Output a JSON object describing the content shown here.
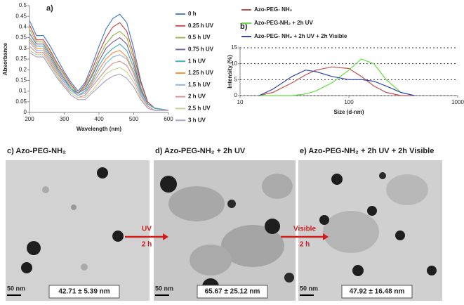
{
  "chart_data": [
    {
      "type": "line",
      "panel": "a)",
      "y_label": "Absorbance",
      "x_label": "Wavelength (nm)",
      "x": [
        200,
        220,
        240,
        260,
        280,
        300,
        320,
        340,
        360,
        380,
        400,
        420,
        440,
        460,
        480,
        500,
        520,
        540,
        560,
        600
      ],
      "xlim": [
        200,
        600
      ],
      "xticks": [
        200,
        300,
        400,
        500,
        600
      ],
      "ylim": [
        0,
        0.5
      ],
      "yticks": [
        0,
        0.05,
        0.1,
        0.15,
        0.2,
        0.25,
        0.3,
        0.35,
        0.4,
        0.45,
        0.5
      ],
      "grid": false,
      "legend": "right",
      "series": [
        {
          "name": "0 h",
          "color": "#4f81bd",
          "values": [
            0.43,
            0.36,
            0.36,
            0.31,
            0.25,
            0.19,
            0.14,
            0.1,
            0.14,
            0.22,
            0.31,
            0.39,
            0.44,
            0.46,
            0.42,
            0.3,
            0.15,
            0.05,
            0.02,
            0.01
          ]
        },
        {
          "name": "0.25 h UV",
          "color": "#c0504d",
          "values": [
            0.41,
            0.34,
            0.34,
            0.29,
            0.23,
            0.18,
            0.13,
            0.09,
            0.13,
            0.2,
            0.28,
            0.35,
            0.4,
            0.42,
            0.38,
            0.27,
            0.14,
            0.05,
            0.02,
            0.01
          ]
        },
        {
          "name": "0.5 h UV",
          "color": "#9bbb59",
          "values": [
            0.39,
            0.33,
            0.33,
            0.28,
            0.22,
            0.17,
            0.12,
            0.09,
            0.12,
            0.18,
            0.26,
            0.32,
            0.36,
            0.38,
            0.35,
            0.25,
            0.12,
            0.04,
            0.02,
            0.01
          ]
        },
        {
          "name": "0.75 h UV",
          "color": "#8064a2",
          "values": [
            0.37,
            0.32,
            0.32,
            0.27,
            0.21,
            0.16,
            0.11,
            0.09,
            0.11,
            0.17,
            0.24,
            0.3,
            0.33,
            0.35,
            0.32,
            0.23,
            0.11,
            0.04,
            0.02,
            0.01
          ]
        },
        {
          "name": "1 h UV",
          "color": "#4bacc6",
          "values": [
            0.35,
            0.31,
            0.31,
            0.26,
            0.2,
            0.15,
            0.11,
            0.08,
            0.1,
            0.15,
            0.22,
            0.27,
            0.3,
            0.32,
            0.29,
            0.21,
            0.1,
            0.04,
            0.02,
            0.01
          ]
        },
        {
          "name": "1.25 h UV",
          "color": "#f79646",
          "values": [
            0.34,
            0.3,
            0.3,
            0.25,
            0.19,
            0.14,
            0.1,
            0.08,
            0.09,
            0.14,
            0.2,
            0.25,
            0.28,
            0.29,
            0.26,
            0.19,
            0.09,
            0.03,
            0.01,
            0.01
          ]
        },
        {
          "name": "1.5 h UV",
          "color": "#95b3d7",
          "values": [
            0.33,
            0.29,
            0.29,
            0.24,
            0.18,
            0.14,
            0.1,
            0.08,
            0.09,
            0.13,
            0.18,
            0.23,
            0.26,
            0.27,
            0.25,
            0.18,
            0.09,
            0.03,
            0.01,
            0.01
          ]
        },
        {
          "name": "2 h UV",
          "color": "#d99694",
          "values": [
            0.31,
            0.28,
            0.28,
            0.23,
            0.17,
            0.13,
            0.09,
            0.07,
            0.08,
            0.12,
            0.16,
            0.2,
            0.23,
            0.24,
            0.22,
            0.16,
            0.08,
            0.03,
            0.01,
            0.01
          ]
        },
        {
          "name": "2.5 h UV",
          "color": "#c3d69b",
          "values": [
            0.29,
            0.27,
            0.27,
            0.22,
            0.17,
            0.12,
            0.09,
            0.07,
            0.07,
            0.1,
            0.14,
            0.18,
            0.2,
            0.21,
            0.19,
            0.14,
            0.07,
            0.02,
            0.01,
            0.01
          ]
        },
        {
          "name": "3 h UV",
          "color": "#b3a2c7",
          "values": [
            0.28,
            0.26,
            0.26,
            0.21,
            0.16,
            0.12,
            0.08,
            0.06,
            0.06,
            0.09,
            0.12,
            0.15,
            0.17,
            0.18,
            0.16,
            0.12,
            0.06,
            0.02,
            0.01,
            0.01
          ]
        }
      ]
    },
    {
      "type": "line",
      "panel": "b)",
      "y_label": "Intensity (%)",
      "x_label": "Size (d-nm)",
      "x": [
        15,
        20,
        30,
        40,
        50,
        70,
        100,
        130,
        170,
        220,
        300,
        400
      ],
      "xlim": [
        10,
        1000
      ],
      "xticks": [
        10,
        100,
        1000
      ],
      "log_x": true,
      "ylim": [
        0,
        15
      ],
      "yticks": [
        0,
        5,
        10,
        15
      ],
      "grid": true,
      "legend": "top",
      "series": [
        {
          "name": "Azo-PEG- NH₂",
          "color": "#c0504d",
          "values": [
            0,
            1,
            4,
            6.5,
            8,
            9,
            8.5,
            6,
            3,
            1,
            0,
            0
          ]
        },
        {
          "name": "Azo-PEG-NH₂ + 2h UV",
          "color": "#66dd44",
          "values": [
            0,
            0,
            0,
            0.5,
            1.5,
            4,
            8,
            11.5,
            10,
            5,
            1,
            0
          ]
        },
        {
          "name": "Azo-PEG- NH₂ + 2h UV + 2h Visible",
          "color": "#3344aa",
          "values": [
            0,
            2,
            6,
            8,
            7.5,
            6,
            5,
            5,
            4.5,
            3,
            1,
            0
          ]
        }
      ]
    }
  ],
  "panels": [
    {
      "title": "c) Azo-PEG-NH₂",
      "scale_bar": "50 nm",
      "size": "42.71 ± 5.39 nm"
    },
    {
      "title": "d) Azo-PEG-NH₂ + 2h UV",
      "scale_bar": "50 nm",
      "size": "65.67 ± 25.12 nm"
    },
    {
      "title": "e) Azo-PEG-NH₂ + 2h UV + 2h Visible",
      "scale_bar": "50 nm",
      "size": "47.92 ± 16.48 nm"
    }
  ],
  "arrows": [
    {
      "label": "UV",
      "time": "2 h"
    },
    {
      "label": "Visible",
      "time": "2 h"
    }
  ]
}
